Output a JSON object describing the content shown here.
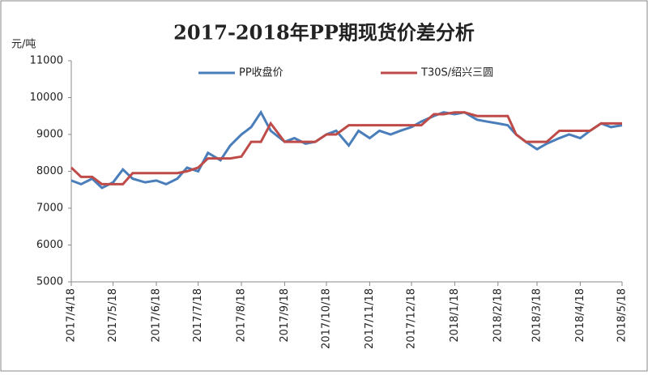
{
  "chart_data": {
    "type": "line",
    "title": "2017-2018年PP期现货价差分析",
    "y_label": "元/吨",
    "x": [
      "2017/4/18",
      "2017/4/25",
      "2017/5/3",
      "2017/5/10",
      "2017/5/18",
      "2017/5/25",
      "2017/6/1",
      "2017/6/10",
      "2017/6/18",
      "2017/6/25",
      "2017/7/3",
      "2017/7/10",
      "2017/7/18",
      "2017/7/25",
      "2017/8/3",
      "2017/8/10",
      "2017/8/18",
      "2017/8/25",
      "2017/9/1",
      "2017/9/8",
      "2017/9/18",
      "2017/9/25",
      "2017/10/3",
      "2017/10/10",
      "2017/10/18",
      "2017/10/25",
      "2017/11/3",
      "2017/11/10",
      "2017/11/18",
      "2017/11/25",
      "2017/12/3",
      "2017/12/10",
      "2017/12/18",
      "2017/12/25",
      "2018/1/3",
      "2018/1/10",
      "2018/1/18",
      "2018/1/25",
      "2018/2/3",
      "2018/2/10",
      "2018/2/18",
      "2018/2/25",
      "2018/3/3",
      "2018/3/10",
      "2018/3/18",
      "2018/3/25",
      "2018/4/3",
      "2018/4/10",
      "2018/4/18",
      "2018/4/25",
      "2018/5/3",
      "2018/5/10",
      "2018/5/18"
    ],
    "series": [
      {
        "name": "PP收盘价",
        "color": "#4a7ebb",
        "values": [
          7750,
          7650,
          7800,
          7550,
          7700,
          8050,
          7800,
          7700,
          7750,
          7650,
          7800,
          8100,
          8000,
          8500,
          8300,
          8700,
          9000,
          9200,
          9600,
          9100,
          8800,
          8900,
          8750,
          8800,
          9000,
          9100,
          8700,
          9100,
          8900,
          9100,
          9000,
          9100,
          9200,
          9350,
          9500,
          9600,
          9550,
          9600,
          9400,
          9350,
          9300,
          9250,
          9000,
          8800,
          8600,
          8750,
          8900,
          9000,
          8900,
          9100,
          9300,
          9200,
          9250
        ]
      },
      {
        "name": "T30S/绍兴三圆",
        "color": "#be4b48",
        "values": [
          8100,
          7850,
          7850,
          7650,
          7650,
          7650,
          7950,
          7950,
          7950,
          7950,
          7950,
          8000,
          8100,
          8350,
          8350,
          8350,
          8400,
          8800,
          8800,
          9300,
          8800,
          8800,
          8800,
          8800,
          9000,
          9000,
          9250,
          9250,
          9250,
          9250,
          9250,
          9250,
          9250,
          9250,
          9550,
          9550,
          9600,
          9600,
          9500,
          9500,
          9500,
          9500,
          9000,
          8800,
          8800,
          8800,
          9100,
          9100,
          9100,
          9100,
          9300,
          9300,
          9300
        ]
      }
    ],
    "xlim": [
      "2017/4/18",
      "2018/5/18"
    ],
    "xticks": [
      "2017/4/18",
      "2017/5/18",
      "2017/6/18",
      "2017/7/18",
      "2017/8/18",
      "2017/9/18",
      "2017/10/18",
      "2017/11/18",
      "2017/12/18",
      "2018/1/18",
      "2018/2/18",
      "2018/3/18",
      "2018/4/18",
      "2018/5/18"
    ],
    "ylim": [
      5000,
      11000
    ],
    "yticks": [
      5000,
      6000,
      7000,
      8000,
      9000,
      10000,
      11000
    ],
    "grid": false
  }
}
